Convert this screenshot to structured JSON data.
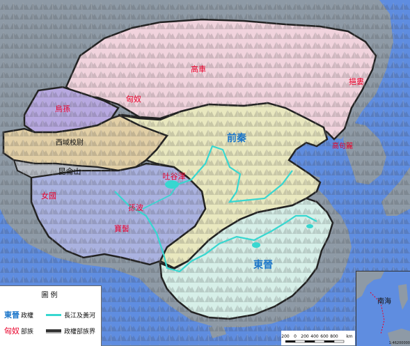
{
  "map": {
    "regions": {
      "gaoche": "高車",
      "xiongnu": "匈奴",
      "wusun": "烏孫",
      "xiyu": "西域校尉",
      "kunlun": "昆侖山",
      "nuguo": "女國",
      "tuyuhun": "吐谷渾",
      "subo": "孫波",
      "baoji": "寶髻",
      "qianqin": "前秦",
      "dongjin": "東晉",
      "xiepu": "挹婁",
      "gaogouli": "高句麗"
    },
    "colors": {
      "sea": "#5f8de0",
      "land_gray": "#8e9aa6",
      "gaoche_fill": "#f1d3dd",
      "wusun_fill": "#b7a8e0",
      "xiyu_fill": "#e2cfa6",
      "tibet_fill": "#aab2e0",
      "qianqin_fill": "#e9e8bf",
      "dongjin_fill": "#d6efe8",
      "river": "#37d7d0",
      "label_red": "#e8002a",
      "label_blue": "#1874c9"
    }
  },
  "legend": {
    "title": "圖例",
    "items": [
      {
        "sample": "東晉",
        "label": "政權"
      },
      {
        "sample": "匈奴",
        "label": "部族"
      },
      {
        "sample": "",
        "label": "長江及黃河"
      },
      {
        "sample": "",
        "label": "政權部族界"
      }
    ]
  },
  "inset": {
    "label": "南海",
    "scale_note": "1:46200000"
  },
  "scale": {
    "ticks": [
      "200",
      "0",
      "200",
      "400",
      "600",
      "800"
    ],
    "unit": "km"
  }
}
